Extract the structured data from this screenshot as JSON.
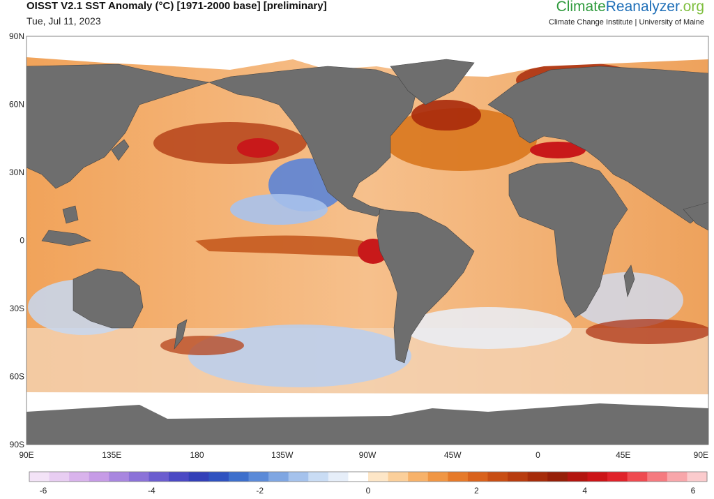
{
  "header": {
    "title": "OISST V2.1 SST Anomaly (°C) [1971-2000 base] [preliminary]",
    "date": "Tue, Jul 11, 2023",
    "brand_part1": "Climate",
    "brand_part2": "Reanalyzer",
    "brand_part3": ".org",
    "affiliation": "Climate Change Institute | University of Maine"
  },
  "map": {
    "lat_labels": [
      "90N",
      "60N",
      "30N",
      "0",
      "30S",
      "60S",
      "90S"
    ],
    "lon_labels": [
      "90E",
      "135E",
      "180",
      "135W",
      "90W",
      "45W",
      "0",
      "45E",
      "90E"
    ],
    "land_color": "#6e6e6e",
    "ice_color": "#ffffff"
  },
  "colorbar": {
    "labels": [
      "-6",
      "-4",
      "-2",
      "0",
      "2",
      "4",
      "6"
    ],
    "min": -6,
    "max": 6,
    "colors": [
      "#f3e3f7",
      "#e8cdf2",
      "#d9b3ec",
      "#c69be6",
      "#a886df",
      "#8b72d8",
      "#6b5dcf",
      "#4b49c4",
      "#3340b8",
      "#2f52c0",
      "#3d6fcc",
      "#5b8ad8",
      "#7fa6e2",
      "#a5c2ec",
      "#c9dcf4",
      "#e6eef9",
      "#ffffff",
      "#fde6c7",
      "#fbcf9a",
      "#f7b26a",
      "#f09644",
      "#e67a2a",
      "#d9621c",
      "#c84e14",
      "#b83c0f",
      "#a62c0a",
      "#961f08",
      "#b3150f",
      "#cc1417",
      "#e0222a",
      "#ef4a50",
      "#f57a7f",
      "#f8a6aa",
      "#fbcbcd"
    ]
  }
}
